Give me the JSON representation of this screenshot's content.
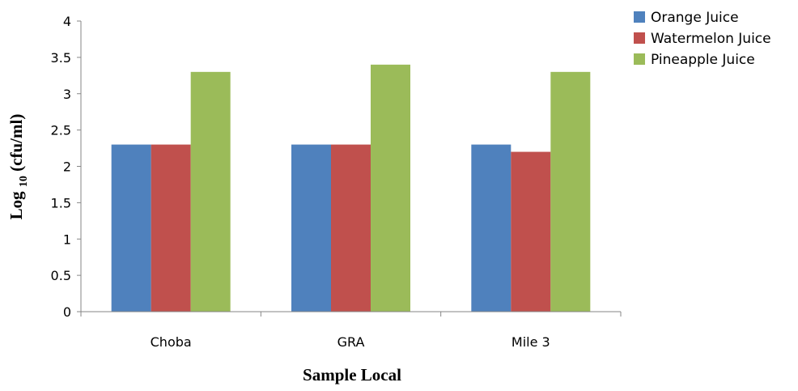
{
  "chart_data": {
    "type": "bar",
    "categories": [
      "Choba",
      "GRA",
      "Mile 3"
    ],
    "series": [
      {
        "name": "Orange Juice",
        "values": [
          2.3,
          2.3,
          2.3
        ],
        "color": "#4F81BD"
      },
      {
        "name": "Watermelon Juice",
        "values": [
          2.3,
          2.3,
          2.2
        ],
        "color": "#C0504D"
      },
      {
        "name": "Pineapple Juice",
        "values": [
          3.3,
          3.4,
          3.3
        ],
        "color": "#9BBB59"
      }
    ],
    "ylim": [
      0,
      4
    ],
    "yticks": [
      "0",
      "0.5",
      "1",
      "1.5",
      "2",
      "2.5",
      "3",
      "3.5",
      "4"
    ],
    "xlabel": "Sample Local",
    "ylabel": {
      "prefix": "Log ",
      "subscript": "10",
      "suffix": " (cfu/ml)"
    },
    "grid": false,
    "legend_position": "top-right"
  }
}
